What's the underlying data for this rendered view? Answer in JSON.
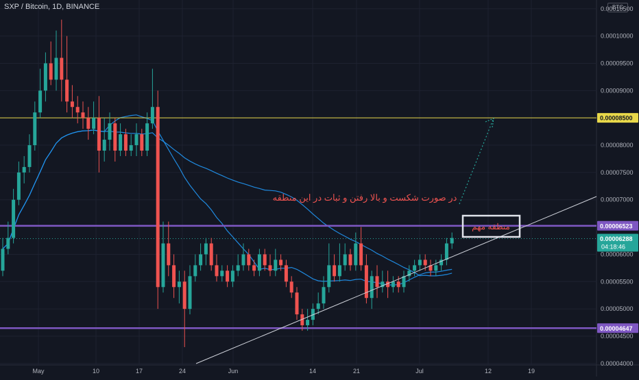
{
  "header": {
    "symbol_line": "SXP / Bitcoin, 1D, BINANCE",
    "currency": "BTC"
  },
  "colors": {
    "background": "#131722",
    "up": "#26a69a",
    "down": "#ef5350",
    "grid": "#1e2230",
    "axis_text": "#b2b5be",
    "resistance": "#7e57c2",
    "target": "#e8d84a",
    "ma": "#2196f3",
    "annotation": "#ef5350",
    "trendline": "#d1d4dc",
    "projection": "#26a69a"
  },
  "chart_data": {
    "type": "candlestick",
    "x_tick_labels": [
      "May",
      "10",
      "17",
      "24",
      "Jun",
      "14",
      "21",
      "Jul",
      "12",
      "19"
    ],
    "y_tick_labels": [
      "0.00010500",
      "0.00010000",
      "0.00009500",
      "0.00009000",
      "0.00008500",
      "0.00008000",
      "0.00007500",
      "0.00007000",
      "0.00006500",
      "0.00006000",
      "0.00005500",
      "0.00005000",
      "0.00004500",
      "0.00004000"
    ],
    "y_ticks": [
      0.000105,
      0.0001,
      9.5e-05,
      9e-05,
      8.5e-05,
      8e-05,
      7.5e-05,
      7e-05,
      6.5e-05,
      6e-05,
      5.5e-05,
      5e-05,
      4.5e-05,
      4e-05
    ],
    "ylim": [
      3.76e-05,
      0.0001066
    ],
    "grid": true,
    "horizontal_levels": [
      {
        "label": "0.00008500",
        "value": 8.5e-05,
        "role": "target"
      },
      {
        "label": "0.00006523",
        "value": 6.523e-05,
        "role": "resistance"
      },
      {
        "label": "0.00004647",
        "value": 4.647e-05,
        "role": "support"
      }
    ],
    "last_price": {
      "label": "0.00006288",
      "value": 6.288e-05,
      "countdown": "04:18:46"
    },
    "annotations": [
      {
        "text": "در صورت شکست و بالا رفتن و ثبات در این منطقه"
      },
      {
        "text": "منطقه مهم"
      }
    ],
    "candles": [
      [
        5.7e-05,
        6.1e-05,
        6.3e-05,
        5.6e-05
      ],
      [
        6.1e-05,
        6.3e-05,
        6.6e-05,
        6e-05
      ],
      [
        6.3e-05,
        7e-05,
        7.2e-05,
        6.2e-05
      ],
      [
        7e-05,
        7.5e-05,
        7.7e-05,
        6.9e-05
      ],
      [
        7.5e-05,
        7.6e-05,
        7.8e-05,
        7.3e-05
      ],
      [
        7.6e-05,
        8e-05,
        8.2e-05,
        7.5e-05
      ],
      [
        8e-05,
        8.6e-05,
        8.8e-05,
        7.9e-05
      ],
      [
        8.6e-05,
        9e-05,
        9.4e-05,
        8.5e-05
      ],
      [
        9e-05,
        9.5e-05,
        9.7e-05,
        8.8e-05
      ],
      [
        9.5e-05,
        9.2e-05,
        9.9e-05,
        9.1e-05
      ],
      [
        9.2e-05,
        9.6e-05,
        0.000101,
        9e-05
      ],
      [
        9.6e-05,
        9.2e-05,
        0.000103,
        8.8e-05
      ],
      [
        9.2e-05,
        8.8e-05,
        0.0001,
        8.6e-05
      ],
      [
        8.8e-05,
        8.7e-05,
        9.1e-05,
        8.5e-05
      ],
      [
        8.7e-05,
        8.6e-05,
        8.9e-05,
        8.4e-05
      ],
      [
        8.6e-05,
        8.5e-05,
        8.8e-05,
        8.3e-05
      ],
      [
        8.5e-05,
        8.3e-05,
        8.7e-05,
        8.1e-05
      ],
      [
        8.3e-05,
        8.5e-05,
        8.8e-05,
        8.2e-05
      ],
      [
        8.5e-05,
        7.9e-05,
        8.9e-05,
        7.5e-05
      ],
      [
        7.9e-05,
        8.1e-05,
        8.5e-05,
        7.7e-05
      ],
      [
        8.1e-05,
        8.4e-05,
        8.6e-05,
        7.9e-05
      ],
      [
        8.4e-05,
        7.9e-05,
        8.5e-05,
        7.7e-05
      ],
      [
        7.9e-05,
        8.2e-05,
        8.4e-05,
        7.8e-05
      ],
      [
        8.2e-05,
        7.9e-05,
        8.3e-05,
        7.8e-05
      ],
      [
        7.9e-05,
        8e-05,
        8.2e-05,
        7.8e-05
      ],
      [
        8e-05,
        8.2e-05,
        8.4e-05,
        7.8e-05
      ],
      [
        8.2e-05,
        7.9e-05,
        8.3e-05,
        7.8e-05
      ],
      [
        7.9e-05,
        8.4e-05,
        8.6e-05,
        7.8e-05
      ],
      [
        8.4e-05,
        8.7e-05,
        9.4e-05,
        8.3e-05
      ],
      [
        8.7e-05,
        5.4e-05,
        9e-05,
        5e-05
      ],
      [
        5.4e-05,
        6.2e-05,
        6.6e-05,
        5.3e-05
      ],
      [
        6.2e-05,
        5.8e-05,
        6.6e-05,
        5.6e-05
      ],
      [
        5.8e-05,
        5.4e-05,
        6e-05,
        5.2e-05
      ],
      [
        5.4e-05,
        5.5e-05,
        5.7e-05,
        5.1e-05
      ],
      [
        5.5e-05,
        5e-05,
        5.7e-05,
        4.3e-05
      ],
      [
        5e-05,
        5.6e-05,
        5.8e-05,
        4.9e-05
      ],
      [
        5.6e-05,
        5.8e-05,
        6e-05,
        5.5e-05
      ],
      [
        5.8e-05,
        6e-05,
        6.2e-05,
        5.7e-05
      ],
      [
        6e-05,
        6.2e-05,
        6.3e-05,
        5.8e-05
      ],
      [
        6.2e-05,
        5.8e-05,
        6.3e-05,
        5.7e-05
      ],
      [
        5.8e-05,
        5.6e-05,
        6e-05,
        5.5e-05
      ],
      [
        5.6e-05,
        5.7e-05,
        5.8e-05,
        5.5e-05
      ],
      [
        5.7e-05,
        5.5e-05,
        5.8e-05,
        5.4e-05
      ],
      [
        5.5e-05,
        5.7e-05,
        5.8e-05,
        5.4e-05
      ],
      [
        5.7e-05,
        5.8e-05,
        6e-05,
        5.6e-05
      ],
      [
        5.8e-05,
        6e-05,
        6.2e-05,
        5.7e-05
      ],
      [
        6e-05,
        5.8e-05,
        6.1e-05,
        5.7e-05
      ],
      [
        5.8e-05,
        5.7e-05,
        5.9e-05,
        5.6e-05
      ],
      [
        5.7e-05,
        6e-05,
        6.1e-05,
        5.6e-05
      ],
      [
        6e-05,
        5.8e-05,
        6.1e-05,
        5.7e-05
      ],
      [
        5.8e-05,
        5.7e-05,
        6e-05,
        5.6e-05
      ],
      [
        5.7e-05,
        5.9e-05,
        6.1e-05,
        5.6e-05
      ],
      [
        5.9e-05,
        5.8e-05,
        6e-05,
        5.7e-05
      ],
      [
        5.8e-05,
        5.5e-05,
        5.9e-05,
        5.4e-05
      ],
      [
        5.5e-05,
        5.3e-05,
        5.6e-05,
        5.2e-05
      ],
      [
        5.3e-05,
        4.9e-05,
        5.4e-05,
        4.8e-05
      ],
      [
        4.9e-05,
        4.7e-05,
        5e-05,
        4.6e-05
      ],
      [
        4.7e-05,
        4.8e-05,
        5e-05,
        4.6e-05
      ],
      [
        4.8e-05,
        5e-05,
        5.1e-05,
        4.7e-05
      ],
      [
        5e-05,
        5.1e-05,
        5.3e-05,
        4.9e-05
      ],
      [
        5.1e-05,
        5.4e-05,
        5.6e-05,
        5e-05
      ],
      [
        5.4e-05,
        5.8e-05,
        6.2e-05,
        5.3e-05
      ],
      [
        5.8e-05,
        5.6e-05,
        6e-05,
        5.5e-05
      ],
      [
        5.6e-05,
        5.8e-05,
        6.2e-05,
        5.5e-05
      ],
      [
        5.8e-05,
        6e-05,
        6.2e-05,
        5.7e-05
      ],
      [
        6e-05,
        5.8e-05,
        6.1e-05,
        5.7e-05
      ],
      [
        5.8e-05,
        6.2e-05,
        6.4e-05,
        5.7e-05
      ],
      [
        6.2e-05,
        5.8e-05,
        6.5e-05,
        5.7e-05
      ],
      [
        5.8e-05,
        5.2e-05,
        6e-05,
        5.1e-05
      ],
      [
        5.2e-05,
        5.6e-05,
        5.7e-05,
        5e-05
      ],
      [
        5.6e-05,
        5.4e-05,
        5.8e-05,
        5.2e-05
      ],
      [
        5.4e-05,
        5.5e-05,
        5.7e-05,
        5.3e-05
      ],
      [
        5.5e-05,
        5.4e-05,
        5.7e-05,
        5.2e-05
      ],
      [
        5.4e-05,
        5.5e-05,
        5.6e-05,
        5.3e-05
      ],
      [
        5.5e-05,
        5.4e-05,
        5.6e-05,
        5.3e-05
      ],
      [
        5.4e-05,
        5.6e-05,
        5.7e-05,
        5.3e-05
      ],
      [
        5.6e-05,
        5.7e-05,
        5.8e-05,
        5.5e-05
      ],
      [
        5.7e-05,
        5.8e-05,
        5.9e-05,
        5.6e-05
      ],
      [
        5.8e-05,
        5.9e-05,
        6e-05,
        5.7e-05
      ],
      [
        5.9e-05,
        5.8e-05,
        6e-05,
        5.7e-05
      ],
      [
        5.8e-05,
        5.7e-05,
        5.9e-05,
        5.6e-05
      ],
      [
        5.7e-05,
        5.8e-05,
        5.9e-05,
        5.6e-05
      ],
      [
        5.8e-05,
        5.9e-05,
        6e-05,
        5.7e-05
      ],
      [
        5.9e-05,
        6.2e-05,
        6.3e-05,
        5.8e-05
      ],
      [
        6.2e-05,
        6.3e-05,
        6.4e-05,
        6.1e-05
      ]
    ]
  }
}
